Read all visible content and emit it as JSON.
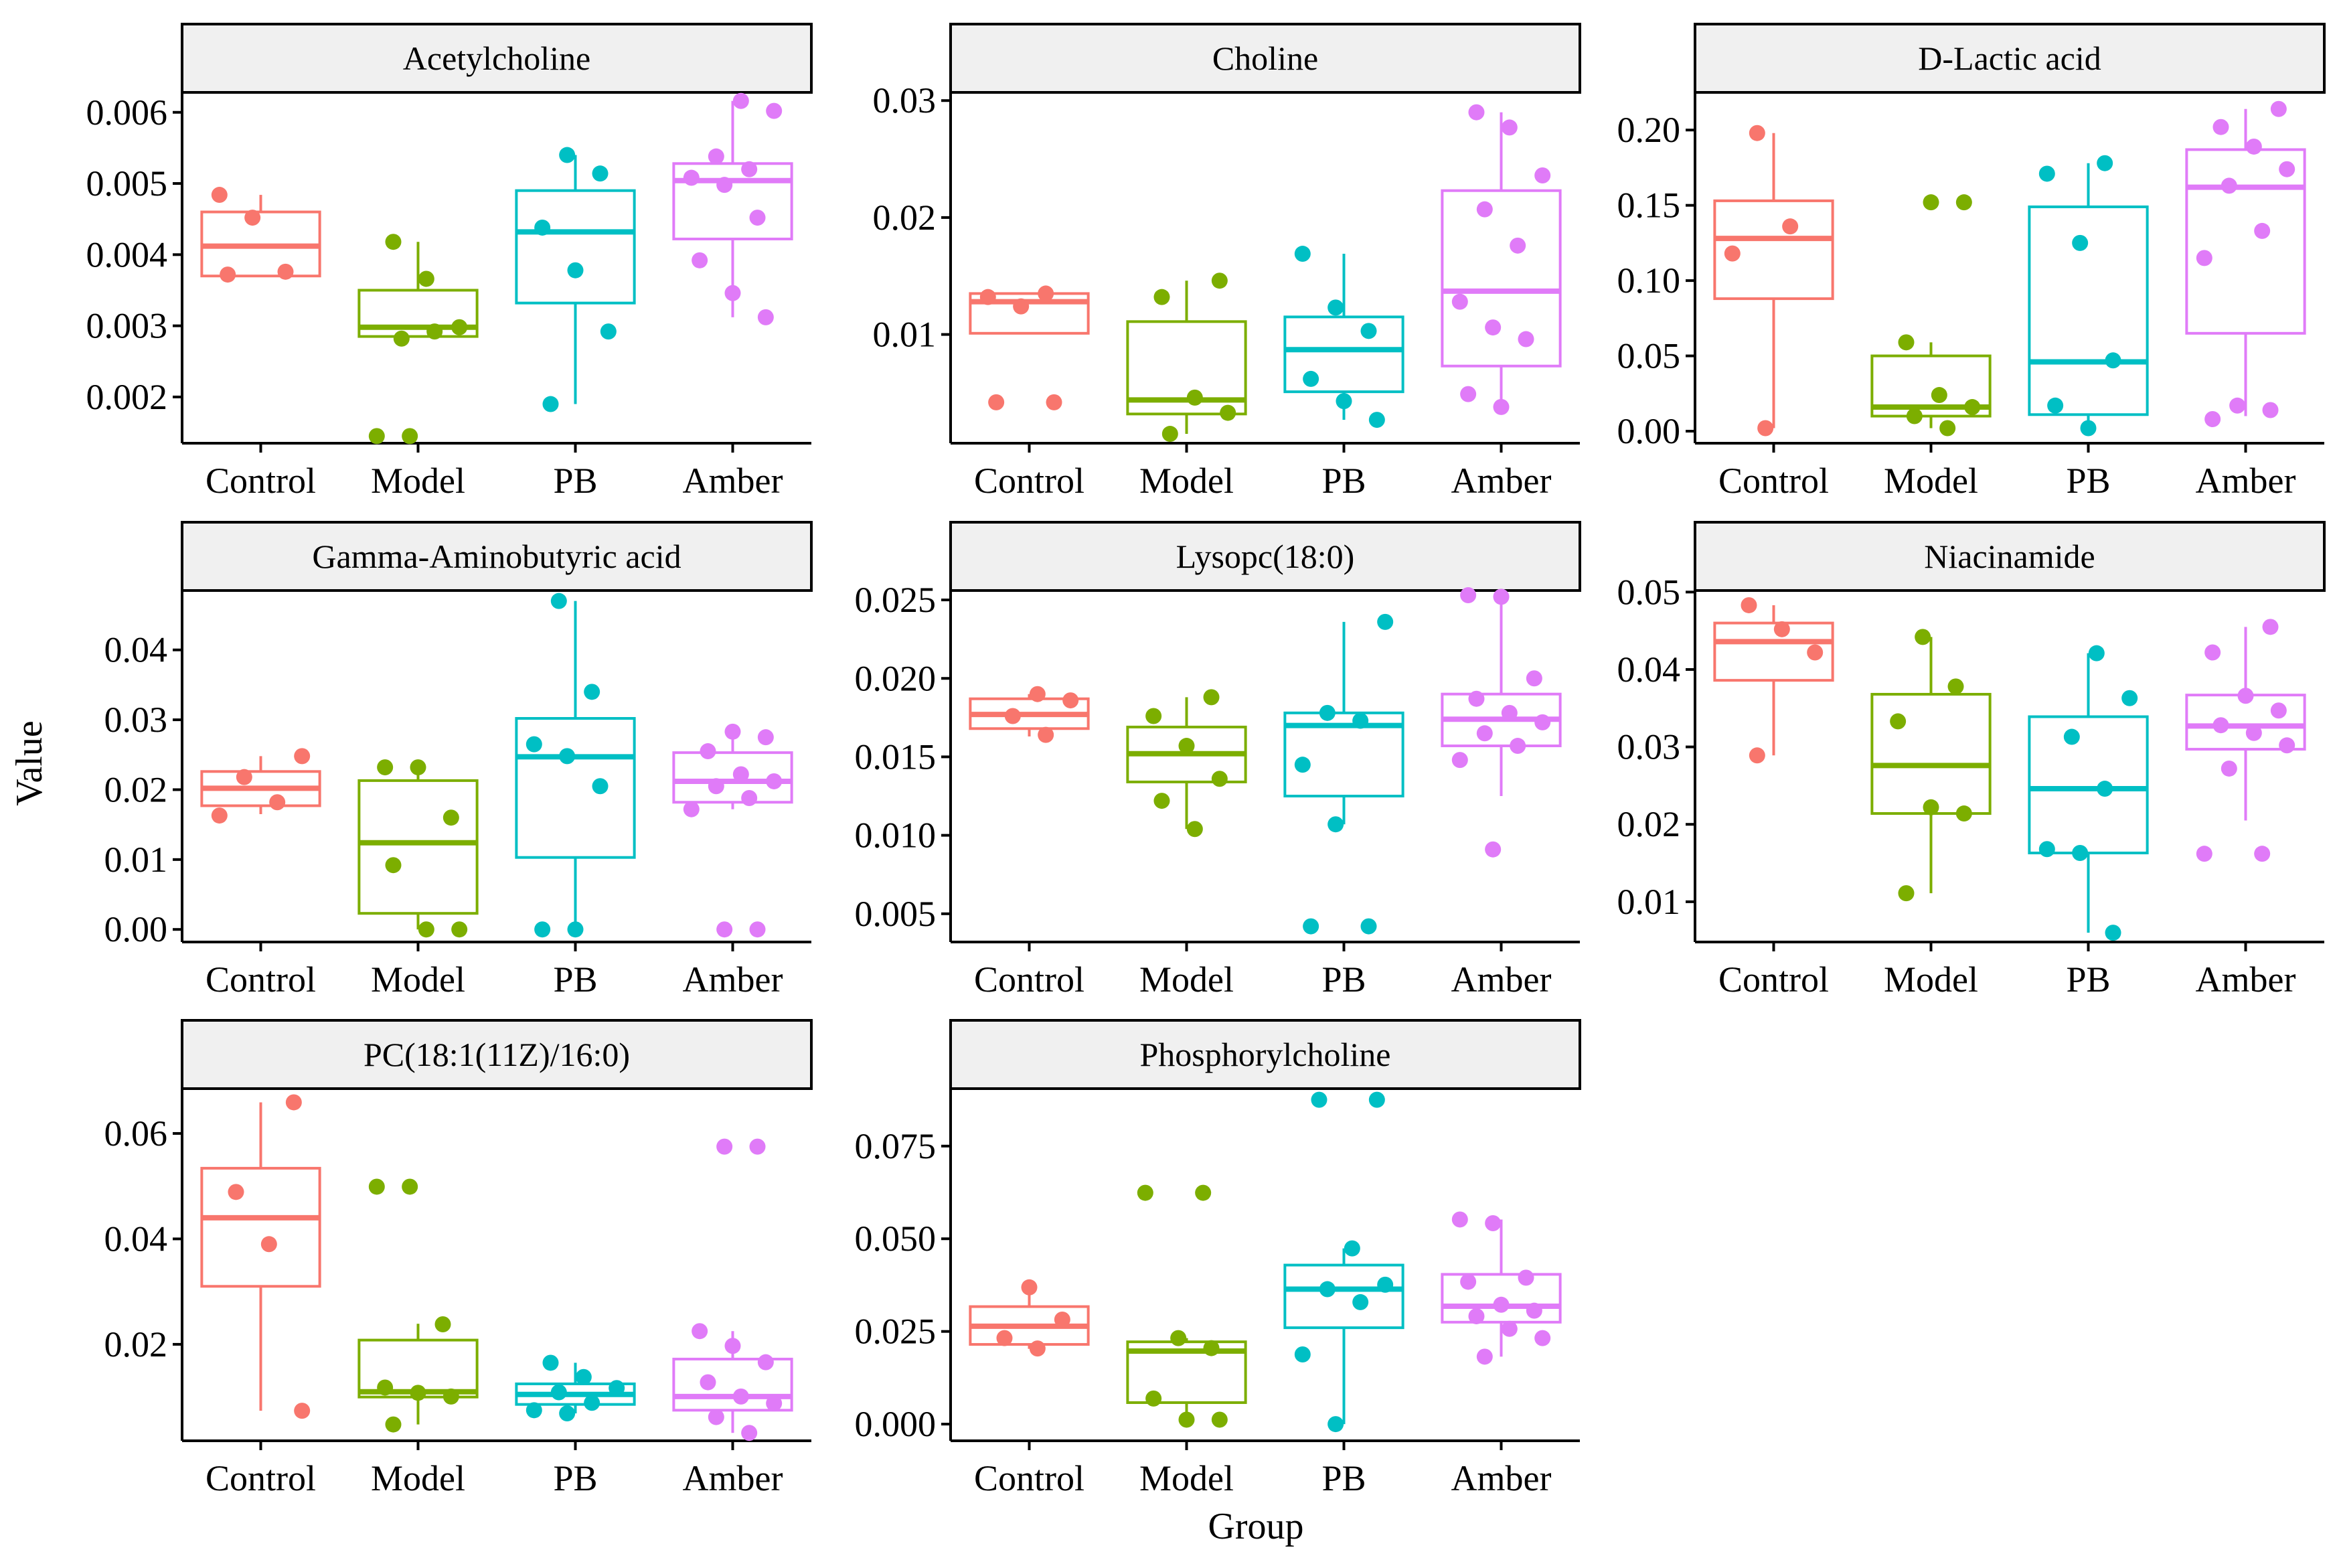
{
  "figure": {
    "xlabel": "Group",
    "ylabel": "Value",
    "group_colors": {
      "Control": "#F8766D",
      "Model": "#7CAE00",
      "PB": "#00BFC4",
      "Amber": "#E07BF8"
    },
    "strip_fill": "#F0F0F0"
  },
  "chart_data": [
    {
      "type": "box",
      "title": "Acetylcholine",
      "categories": [
        "Control",
        "Model",
        "PB",
        "Amber"
      ],
      "yticks": [
        0.002,
        0.003,
        0.004,
        0.005,
        0.006
      ],
      "ytick_labels": [
        "0.002",
        "0.003",
        "0.004",
        "0.005",
        "0.006"
      ],
      "ylim": [
        0.00135,
        0.00628
      ],
      "boxes": [
        {
          "group": "Control",
          "q1": 0.0037,
          "median": 0.00412,
          "q3": 0.0046,
          "whisker_low": 0.0037,
          "whisker_high": 0.00484,
          "points": [
            0.00484,
            0.00452,
            0.00376,
            0.00372
          ]
        },
        {
          "group": "Model",
          "q1": 0.00285,
          "median": 0.00298,
          "q3": 0.0035,
          "whisker_low": 0.00285,
          "whisker_high": 0.00418,
          "points": [
            0.00418,
            0.00366,
            0.00298,
            0.00282,
            0.00292,
            0.00145,
            0.00145
          ]
        },
        {
          "group": "PB",
          "q1": 0.00332,
          "median": 0.00432,
          "q3": 0.0049,
          "whisker_low": 0.0019,
          "whisker_high": 0.0054,
          "points": [
            0.0054,
            0.00514,
            0.00438,
            0.00378,
            0.00292,
            0.0019
          ]
        },
        {
          "group": "Amber",
          "q1": 0.00422,
          "median": 0.00504,
          "q3": 0.00528,
          "whisker_low": 0.00312,
          "whisker_high": 0.00616,
          "points": [
            0.00616,
            0.00602,
            0.00538,
            0.0052,
            0.00508,
            0.00498,
            0.00452,
            0.00392,
            0.00346,
            0.00312
          ]
        }
      ]
    },
    {
      "type": "box",
      "title": "Choline",
      "categories": [
        "Control",
        "Model",
        "PB",
        "Amber"
      ],
      "yticks": [
        0.01,
        0.02,
        0.03
      ],
      "ytick_labels": [
        "0.01",
        "0.02",
        "0.03"
      ],
      "ylim": [
        0.0007,
        0.0307
      ],
      "boxes": [
        {
          "group": "Control",
          "q1": 0.0101,
          "median": 0.0128,
          "q3": 0.0135,
          "whisker_low": 0.0101,
          "whisker_high": 0.0135,
          "points": [
            0.0135,
            0.0132,
            0.0124,
            0.0042,
            0.0042
          ]
        },
        {
          "group": "Model",
          "q1": 0.0032,
          "median": 0.0044,
          "q3": 0.0111,
          "whisker_low": 0.0015,
          "whisker_high": 0.0146,
          "points": [
            0.0146,
            0.0132,
            0.0046,
            0.0033,
            0.0015
          ]
        },
        {
          "group": "PB",
          "q1": 0.0051,
          "median": 0.0087,
          "q3": 0.0115,
          "whisker_low": 0.0027,
          "whisker_high": 0.0169,
          "points": [
            0.0169,
            0.0123,
            0.0103,
            0.0062,
            0.0043,
            0.0027
          ]
        },
        {
          "group": "Amber",
          "q1": 0.0073,
          "median": 0.0137,
          "q3": 0.0223,
          "whisker_low": 0.0038,
          "whisker_high": 0.029,
          "points": [
            0.029,
            0.0277,
            0.0236,
            0.0207,
            0.0176,
            0.0128,
            0.0106,
            0.0096,
            0.0049,
            0.0038
          ]
        }
      ]
    },
    {
      "type": "box",
      "title": "D-Lactic acid",
      "categories": [
        "Control",
        "Model",
        "PB",
        "Amber"
      ],
      "yticks": [
        0.0,
        0.05,
        0.1,
        0.15,
        0.2
      ],
      "ytick_labels": [
        "0.00",
        "0.05",
        "0.10",
        "0.15",
        "0.20"
      ],
      "ylim": [
        -0.008,
        0.225
      ],
      "boxes": [
        {
          "group": "Control",
          "q1": 0.088,
          "median": 0.128,
          "q3": 0.153,
          "whisker_low": 0.002,
          "whisker_high": 0.198,
          "points": [
            0.198,
            0.136,
            0.118,
            0.002
          ]
        },
        {
          "group": "Model",
          "q1": 0.01,
          "median": 0.016,
          "q3": 0.05,
          "whisker_low": 0.002,
          "whisker_high": 0.059,
          "points": [
            0.152,
            0.152,
            0.059,
            0.024,
            0.016,
            0.01,
            0.002
          ]
        },
        {
          "group": "PB",
          "q1": 0.011,
          "median": 0.046,
          "q3": 0.149,
          "whisker_low": 0.002,
          "whisker_high": 0.178,
          "points": [
            0.178,
            0.171,
            0.125,
            0.047,
            0.017,
            0.002
          ]
        },
        {
          "group": "Amber",
          "q1": 0.065,
          "median": 0.162,
          "q3": 0.187,
          "whisker_low": 0.01,
          "whisker_high": 0.214,
          "points": [
            0.214,
            0.202,
            0.189,
            0.174,
            0.163,
            0.133,
            0.115,
            0.017,
            0.014,
            0.008
          ]
        }
      ]
    },
    {
      "type": "box",
      "title": "Gamma-Aminobutyric acid",
      "categories": [
        "Control",
        "Model",
        "PB",
        "Amber"
      ],
      "yticks": [
        0.0,
        0.01,
        0.02,
        0.03,
        0.04
      ],
      "ytick_labels": [
        "0.00",
        "0.01",
        "0.02",
        "0.03",
        "0.04"
      ],
      "ylim": [
        -0.0018,
        0.0485
      ],
      "boxes": [
        {
          "group": "Control",
          "q1": 0.0177,
          "median": 0.0202,
          "q3": 0.0226,
          "whisker_low": 0.0165,
          "whisker_high": 0.0248,
          "points": [
            0.0248,
            0.0218,
            0.0182,
            0.0163
          ]
        },
        {
          "group": "Model",
          "q1": 0.0023,
          "median": 0.0124,
          "q3": 0.0213,
          "whisker_low": 0.0,
          "whisker_high": 0.0234,
          "points": [
            0.0232,
            0.0232,
            0.016,
            0.0092,
            0.0,
            0.0
          ]
        },
        {
          "group": "PB",
          "q1": 0.0103,
          "median": 0.0247,
          "q3": 0.0302,
          "whisker_low": 0.0,
          "whisker_high": 0.047,
          "points": [
            0.047,
            0.034,
            0.0265,
            0.0248,
            0.0205,
            0.0,
            0.0
          ]
        },
        {
          "group": "Amber",
          "q1": 0.0182,
          "median": 0.0212,
          "q3": 0.0253,
          "whisker_low": 0.0172,
          "whisker_high": 0.0283,
          "points": [
            0.0283,
            0.0275,
            0.0255,
            0.0222,
            0.0212,
            0.0205,
            0.0188,
            0.0172,
            0.0,
            0.0
          ]
        }
      ]
    },
    {
      "type": "box",
      "title": "Lysopc(18:0)",
      "categories": [
        "Control",
        "Model",
        "PB",
        "Amber"
      ],
      "yticks": [
        0.005,
        0.01,
        0.015,
        0.02,
        0.025
      ],
      "ytick_labels": [
        "0.005",
        "0.010",
        "0.015",
        "0.020",
        "0.025"
      ],
      "ylim": [
        0.0032,
        0.0256
      ],
      "boxes": [
        {
          "group": "Control",
          "q1": 0.0168,
          "median": 0.0177,
          "q3": 0.0187,
          "whisker_low": 0.0163,
          "whisker_high": 0.019,
          "points": [
            0.019,
            0.0186,
            0.0176,
            0.0164
          ]
        },
        {
          "group": "Model",
          "q1": 0.0134,
          "median": 0.0152,
          "q3": 0.0169,
          "whisker_low": 0.0104,
          "whisker_high": 0.0188,
          "points": [
            0.0188,
            0.0176,
            0.0157,
            0.0136,
            0.0122,
            0.0104
          ]
        },
        {
          "group": "PB",
          "q1": 0.0125,
          "median": 0.017,
          "q3": 0.0178,
          "whisker_low": 0.0107,
          "whisker_high": 0.0236,
          "points": [
            0.0236,
            0.0178,
            0.0173,
            0.0145,
            0.0107,
            0.0042,
            0.0042
          ]
        },
        {
          "group": "Amber",
          "q1": 0.0157,
          "median": 0.0174,
          "q3": 0.019,
          "whisker_low": 0.0125,
          "whisker_high": 0.0253,
          "points": [
            0.0253,
            0.0252,
            0.02,
            0.0187,
            0.0178,
            0.0172,
            0.0165,
            0.0157,
            0.0148,
            0.0091
          ]
        }
      ]
    },
    {
      "type": "box",
      "title": "Niacinamide",
      "categories": [
        "Control",
        "Model",
        "PB",
        "Amber"
      ],
      "yticks": [
        0.01,
        0.02,
        0.03,
        0.04,
        0.05
      ],
      "ytick_labels": [
        "0.01",
        "0.02",
        "0.03",
        "0.04",
        "0.05"
      ],
      "ylim": [
        0.0048,
        0.0502
      ],
      "boxes": [
        {
          "group": "Control",
          "q1": 0.0386,
          "median": 0.0436,
          "q3": 0.046,
          "whisker_low": 0.0289,
          "whisker_high": 0.0483,
          "points": [
            0.0483,
            0.0452,
            0.0422,
            0.0289
          ]
        },
        {
          "group": "Model",
          "q1": 0.0214,
          "median": 0.0276,
          "q3": 0.0368,
          "whisker_low": 0.0111,
          "whisker_high": 0.0442,
          "points": [
            0.0442,
            0.0378,
            0.0333,
            0.0222,
            0.0214,
            0.0111
          ]
        },
        {
          "group": "PB",
          "q1": 0.0163,
          "median": 0.0246,
          "q3": 0.0339,
          "whisker_low": 0.006,
          "whisker_high": 0.0421,
          "points": [
            0.0421,
            0.0363,
            0.0313,
            0.0246,
            0.0168,
            0.0163,
            0.006
          ]
        },
        {
          "group": "Amber",
          "q1": 0.0297,
          "median": 0.0327,
          "q3": 0.0367,
          "whisker_low": 0.0205,
          "whisker_high": 0.0455,
          "points": [
            0.0455,
            0.0422,
            0.0366,
            0.0347,
            0.0328,
            0.0318,
            0.0302,
            0.0272,
            0.0162,
            0.0162
          ]
        }
      ]
    },
    {
      "type": "box",
      "title": "PC(18:1(11Z)/16:0)",
      "categories": [
        "Control",
        "Model",
        "PB",
        "Amber"
      ],
      "yticks": [
        0.02,
        0.04,
        0.06
      ],
      "ytick_labels": [
        "0.02",
        "0.04",
        "0.06"
      ],
      "ylim": [
        0.0017,
        0.0685
      ],
      "boxes": [
        {
          "group": "Control",
          "q1": 0.031,
          "median": 0.044,
          "q3": 0.0534,
          "whisker_low": 0.0074,
          "whisker_high": 0.0659,
          "points": [
            0.0659,
            0.0489,
            0.039,
            0.0074
          ]
        },
        {
          "group": "Model",
          "q1": 0.01,
          "median": 0.011,
          "q3": 0.0208,
          "whisker_low": 0.0048,
          "whisker_high": 0.0239,
          "points": [
            0.0499,
            0.0499,
            0.0238,
            0.0118,
            0.0108,
            0.0101,
            0.0048
          ]
        },
        {
          "group": "PB",
          "q1": 0.0086,
          "median": 0.0105,
          "q3": 0.0125,
          "whisker_low": 0.0069,
          "whisker_high": 0.0165,
          "points": [
            0.0165,
            0.0138,
            0.0117,
            0.0109,
            0.0089,
            0.0075,
            0.0069
          ]
        },
        {
          "group": "Amber",
          "q1": 0.0075,
          "median": 0.0101,
          "q3": 0.0172,
          "whisker_low": 0.0032,
          "whisker_high": 0.0225,
          "points": [
            0.0575,
            0.0575,
            0.0225,
            0.0197,
            0.0166,
            0.0128,
            0.0101,
            0.0088,
            0.0062,
            0.0032
          ]
        }
      ]
    },
    {
      "type": "box",
      "title": "Phosphorylcholine",
      "categories": [
        "Control",
        "Model",
        "PB",
        "Amber"
      ],
      "yticks": [
        0.0,
        0.025,
        0.05,
        0.075
      ],
      "ytick_labels": [
        "0.000",
        "0.025",
        "0.050",
        "0.075"
      ],
      "ylim": [
        -0.0045,
        0.0905
      ],
      "boxes": [
        {
          "group": "Control",
          "q1": 0.0215,
          "median": 0.0264,
          "q3": 0.0317,
          "whisker_low": 0.0203,
          "whisker_high": 0.0369,
          "points": [
            0.0369,
            0.0282,
            0.0232,
            0.0204
          ]
        },
        {
          "group": "Model",
          "q1": 0.0058,
          "median": 0.0197,
          "q3": 0.0222,
          "whisker_low": 0.0012,
          "whisker_high": 0.0232,
          "points": [
            0.0624,
            0.0624,
            0.0232,
            0.0205,
            0.0069,
            0.0012,
            0.0012
          ]
        },
        {
          "group": "PB",
          "q1": 0.026,
          "median": 0.0364,
          "q3": 0.0429,
          "whisker_low": 0.0,
          "whisker_high": 0.0474,
          "points": [
            0.0875,
            0.0875,
            0.0474,
            0.0376,
            0.0364,
            0.0329,
            0.0188,
            0.0
          ]
        },
        {
          "group": "Amber",
          "q1": 0.0275,
          "median": 0.0318,
          "q3": 0.0404,
          "whisker_low": 0.0182,
          "whisker_high": 0.0552,
          "points": [
            0.0552,
            0.0542,
            0.0395,
            0.0384,
            0.0322,
            0.0306,
            0.0291,
            0.0257,
            0.0232,
            0.0182
          ]
        }
      ]
    }
  ]
}
